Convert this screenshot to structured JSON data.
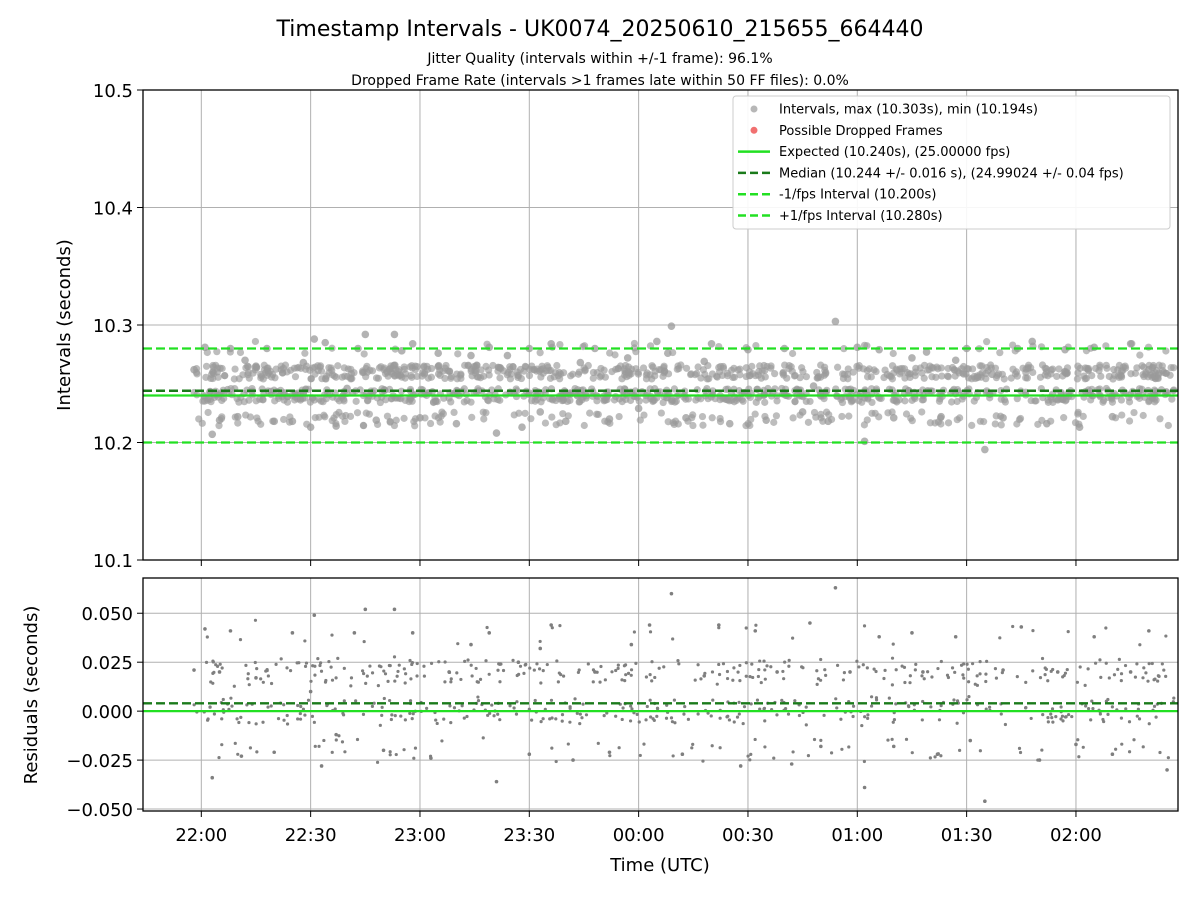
{
  "chart_data": [
    {
      "type": "scatter",
      "title": "Timestamp Intervals - UK0074_20250610_215655_664440",
      "subtitle_lines": [
        "Jitter Quality (intervals within +/-1 frame): 96.1%",
        "Dropped Frame Rate (intervals >1 frames late within 50 FF files): 0.0%"
      ],
      "xlabel": "",
      "ylabel": "Intervals (seconds)",
      "ylim": [
        10.1,
        10.5
      ],
      "yticks": [
        "10.1",
        "10.2",
        "10.3",
        "10.4",
        "10.5"
      ],
      "xlim": [
        "2025-06-10T21:44",
        "2025-06-11T02:28"
      ],
      "xticks": [
        "22:00",
        "22:30",
        "23:00",
        "23:30",
        "00:00",
        "00:30",
        "01:00",
        "01:30",
        "02:00"
      ],
      "grid": true,
      "legend_position": "top-right",
      "legend": [
        {
          "label": "Intervals, max (10.303s), min (10.194s)",
          "marker": "circle",
          "color": "#999999"
        },
        {
          "label": "Possible Dropped Frames",
          "marker": "circle",
          "color": "#f06060"
        },
        {
          "label": "Expected (10.240s), (25.00000 fps)",
          "marker": "solid-line",
          "color": "#22e022"
        },
        {
          "label": "Median (10.244 +/- 0.016 s), (24.99024 +/- 0.04 fps)",
          "marker": "dashed-line",
          "color": "#1a7a1a"
        },
        {
          "label": "-1/fps Interval (10.200s)",
          "marker": "dashed-line",
          "color": "#22e022"
        },
        {
          "label": "+1/fps Interval (10.280s)",
          "marker": "dashed-line",
          "color": "#22e022"
        }
      ],
      "reference_lines": [
        {
          "name": "Expected",
          "value": 10.24,
          "style": "solid",
          "color": "#22e022"
        },
        {
          "name": "Median",
          "value": 10.244,
          "style": "dashed",
          "color": "#1a7a1a"
        },
        {
          "name": "-1/fps Interval",
          "value": 10.2,
          "style": "dashed",
          "color": "#22e022"
        },
        {
          "name": "+1/fps Interval",
          "value": 10.28,
          "style": "dashed",
          "color": "#22e022"
        }
      ],
      "series": [
        {
          "name": "Intervals",
          "color": "#999999",
          "extremes": {
            "max": 10.303,
            "min": 10.194
          },
          "points": [
            [
              "21:58",
              10.262
            ],
            [
              "22:01",
              10.281
            ],
            [
              "22:03",
              10.207
            ],
            [
              "22:05",
              10.219
            ],
            [
              "22:08",
              10.28
            ],
            [
              "22:10",
              10.222
            ],
            [
              "22:12",
              10.27
            ],
            [
              "22:15",
              10.265
            ],
            [
              "22:18",
              10.28
            ],
            [
              "22:20",
              10.218
            ],
            [
              "22:25",
              10.218
            ],
            [
              "22:28",
              10.268
            ],
            [
              "22:30",
              10.213
            ],
            [
              "22:31",
              10.288
            ],
            [
              "22:34",
              10.285
            ],
            [
              "22:37",
              10.214
            ],
            [
              "22:40",
              10.246
            ],
            [
              "22:43",
              10.28
            ],
            [
              "22:45",
              10.292
            ],
            [
              "22:48",
              10.219
            ],
            [
              "22:51",
              10.26
            ],
            [
              "22:53",
              10.292
            ],
            [
              "22:55",
              10.278
            ],
            [
              "22:58",
              10.284
            ],
            [
              "23:00",
              10.221
            ],
            [
              "23:05",
              10.276
            ],
            [
              "23:10",
              10.216
            ],
            [
              "23:14",
              10.274
            ],
            [
              "23:19",
              10.281
            ],
            [
              "23:21",
              10.208
            ],
            [
              "23:24",
              10.274
            ],
            [
              "23:28",
              10.213
            ],
            [
              "23:30",
              10.28
            ],
            [
              "23:33",
              10.226
            ],
            [
              "23:36",
              10.284
            ],
            [
              "23:40",
              10.218
            ],
            [
              "23:44",
              10.268
            ],
            [
              "23:48",
              10.28
            ],
            [
              "23:52",
              10.22
            ],
            [
              "23:57",
              10.272
            ],
            [
              "24:00",
              10.229
            ],
            [
              "24:05",
              10.286
            ],
            [
              "24:08",
              10.276
            ],
            [
              "24:09",
              10.299
            ],
            [
              "24:13",
              10.221
            ],
            [
              "24:18",
              10.269
            ],
            [
              "24:20",
              10.284
            ],
            [
              "24:25",
              10.216
            ],
            [
              "24:30",
              10.279
            ],
            [
              "24:35",
              10.219
            ],
            [
              "24:40",
              10.28
            ],
            [
              "24:45",
              10.226
            ],
            [
              "24:48",
              10.248
            ],
            [
              "24:52",
              10.218
            ],
            [
              "24:54",
              10.303
            ],
            [
              "24:58",
              10.238
            ],
            [
              "25:00",
              10.281
            ],
            [
              "25:02",
              10.201
            ],
            [
              "25:06",
              10.279
            ],
            [
              "25:10",
              10.221
            ],
            [
              "25:15",
              10.272
            ],
            [
              "25:19",
              10.277
            ],
            [
              "25:23",
              10.222
            ],
            [
              "25:27",
              10.27
            ],
            [
              "25:30",
              10.28
            ],
            [
              "25:35",
              10.194
            ],
            [
              "25:37",
              10.258
            ],
            [
              "25:40",
              10.221
            ],
            [
              "25:44",
              10.28
            ],
            [
              "25:48",
              10.286
            ],
            [
              "25:52",
              10.216
            ],
            [
              "25:57",
              10.279
            ],
            [
              "26:01",
              10.213
            ],
            [
              "26:05",
              10.281
            ],
            [
              "26:10",
              10.222
            ],
            [
              "26:15",
              10.284
            ],
            [
              "26:20",
              10.262
            ],
            [
              "26:25",
              10.242
            ]
          ]
        }
      ]
    },
    {
      "type": "scatter",
      "xlabel": "Time (UTC)",
      "ylabel": "Residuals (seconds)",
      "ylim": [
        -0.051,
        0.068
      ],
      "yticks": [
        "−0.050",
        "−0.025",
        "0.000",
        "0.025",
        "0.050"
      ],
      "xticks": [
        "22:00",
        "22:30",
        "23:00",
        "23:30",
        "00:00",
        "00:30",
        "01:00",
        "01:30",
        "02:00"
      ],
      "grid": true,
      "reference_lines": [
        {
          "name": "Expected",
          "value": 0.0,
          "style": "solid",
          "color": "#22e022"
        },
        {
          "name": "Median",
          "value": 0.004,
          "style": "dashed",
          "color": "#1a7a1a"
        }
      ],
      "series": [
        {
          "name": "Residuals",
          "color": "#7f7f7f",
          "points": [
            [
              "21:58",
              0.021
            ],
            [
              "22:01",
              0.042
            ],
            [
              "22:03",
              -0.034
            ],
            [
              "22:05",
              0.02
            ],
            [
              "22:08",
              0.041
            ],
            [
              "22:11",
              -0.023
            ],
            [
              "22:15",
              0.017
            ],
            [
              "22:20",
              -0.021
            ],
            [
              "22:25",
              0.04
            ],
            [
              "22:30",
              0.01
            ],
            [
              "22:31",
              0.049
            ],
            [
              "22:33",
              -0.028
            ],
            [
              "22:37",
              -0.012
            ],
            [
              "22:42",
              0.04
            ],
            [
              "22:45",
              0.052
            ],
            [
              "22:50",
              -0.02
            ],
            [
              "22:53",
              0.052
            ],
            [
              "22:58",
              0.04
            ],
            [
              "23:03",
              -0.024
            ],
            [
              "23:08",
              0.02
            ],
            [
              "23:14",
              0.034
            ],
            [
              "23:19",
              0.04
            ],
            [
              "23:21",
              -0.036
            ],
            [
              "23:27",
              0.025
            ],
            [
              "23:30",
              -0.022
            ],
            [
              "23:33",
              0.032
            ],
            [
              "23:36",
              0.044
            ],
            [
              "23:42",
              -0.025
            ],
            [
              "23:48",
              0.02
            ],
            [
              "23:52",
              -0.021
            ],
            [
              "23:58",
              0.034
            ],
            [
              "24:03",
              0.044
            ],
            [
              "24:09",
              0.06
            ],
            [
              "24:12",
              -0.022
            ],
            [
              "24:18",
              0.018
            ],
            [
              "24:22",
              0.044
            ],
            [
              "24:28",
              -0.028
            ],
            [
              "24:32",
              0.041
            ],
            [
              "24:38",
              0.02
            ],
            [
              "24:42",
              -0.027
            ],
            [
              "24:47",
              0.045
            ],
            [
              "24:50",
              -0.018
            ],
            [
              "24:54",
              0.063
            ],
            [
              "24:58",
              0.02
            ],
            [
              "25:02",
              -0.039
            ],
            [
              "25:06",
              0.038
            ],
            [
              "25:10",
              -0.018
            ],
            [
              "25:15",
              0.04
            ],
            [
              "25:18",
              0.02
            ],
            [
              "25:22",
              -0.022
            ],
            [
              "25:27",
              0.038
            ],
            [
              "25:31",
              -0.015
            ],
            [
              "25:35",
              -0.046
            ],
            [
              "25:40",
              0.021
            ],
            [
              "25:45",
              0.043
            ],
            [
              "25:50",
              -0.025
            ],
            [
              "25:55",
              0.02
            ],
            [
              "26:00",
              -0.017
            ],
            [
              "26:05",
              0.038
            ],
            [
              "26:10",
              -0.022
            ],
            [
              "26:15",
              0.02
            ],
            [
              "26:20",
              0.041
            ],
            [
              "26:25",
              -0.03
            ]
          ]
        }
      ]
    }
  ]
}
